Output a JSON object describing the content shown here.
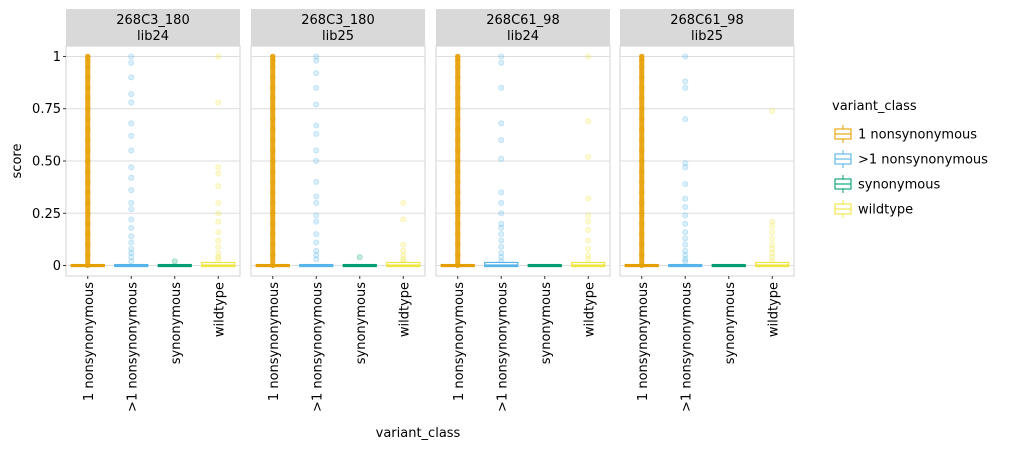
{
  "chart_data": {
    "type": "box",
    "xlabel": "variant_class",
    "ylabel": "score",
    "ylim": [
      -0.05,
      1.05
    ],
    "yticks": [
      0,
      0.25,
      0.5,
      0.75,
      1
    ],
    "ytick_labels": [
      "0",
      "0.25",
      "0.50",
      "0.75",
      "1"
    ],
    "categories": [
      "1 nonsynonymous",
      ">1 nonsynonymous",
      "synonymous",
      "wildtype"
    ],
    "grid": true,
    "legend": {
      "title": "variant_class",
      "position": "right",
      "entries": [
        "1 nonsynonymous",
        ">1 nonsynonymous",
        "synonymous",
        "wildtype"
      ]
    },
    "colors": {
      "1 nonsynonymous": "#E69F00",
      ">1 nonsynonymous": "#56B4E9",
      "synonymous": "#009E73",
      "wildtype": "#F0E442"
    },
    "facets": [
      {
        "strip": [
          "268C3_180",
          "lib24"
        ],
        "groups": [
          {
            "category": "1 nonsynonymous",
            "median": 0,
            "q1": 0,
            "q3": 0,
            "outlier_max": 1.0,
            "outliers": [
              1.0,
              0.98,
              0.95,
              0.9,
              0.85,
              0.8,
              0.75,
              0.7,
              0.65,
              0.6,
              0.55,
              0.5,
              0.45,
              0.4,
              0.35,
              0.3,
              0.25,
              0.2,
              0.15,
              0.1,
              0.05
            ]
          },
          {
            "category": ">1 nonsynonymous",
            "median": 0,
            "q1": 0,
            "q3": 0,
            "outlier_max": 1.0,
            "outliers": [
              1.0,
              0.97,
              0.9,
              0.82,
              0.78,
              0.68,
              0.62,
              0.55,
              0.47,
              0.42,
              0.36,
              0.3,
              0.27,
              0.22,
              0.18,
              0.14,
              0.11,
              0.08,
              0.06,
              0.04,
              0.02
            ]
          },
          {
            "category": "synonymous",
            "median": 0,
            "q1": 0,
            "q3": 0,
            "outlier_max": 0.02,
            "outliers": [
              0.02
            ]
          },
          {
            "category": "wildtype",
            "median": 0,
            "q1": 0,
            "q3": 0.01,
            "outlier_max": 1.0,
            "outliers": [
              1.0,
              0.78,
              0.47,
              0.44,
              0.38,
              0.3,
              0.25,
              0.21,
              0.16,
              0.12,
              0.09,
              0.06,
              0.04,
              0.03
            ]
          }
        ]
      },
      {
        "strip": [
          "268C3_180",
          "lib25"
        ],
        "groups": [
          {
            "category": "1 nonsynonymous",
            "median": 0,
            "q1": 0,
            "q3": 0,
            "outlier_max": 1.0,
            "outliers": [
              1.0,
              0.98,
              0.95,
              0.9,
              0.85,
              0.8,
              0.75,
              0.7,
              0.65,
              0.6,
              0.55,
              0.5,
              0.45,
              0.4,
              0.35,
              0.3,
              0.25,
              0.2,
              0.15,
              0.1,
              0.05
            ]
          },
          {
            "category": ">1 nonsynonymous",
            "median": 0,
            "q1": 0,
            "q3": 0,
            "outlier_max": 1.0,
            "outliers": [
              1.0,
              0.98,
              0.92,
              0.85,
              0.77,
              0.67,
              0.63,
              0.55,
              0.5,
              0.4,
              0.33,
              0.3,
              0.24,
              0.21,
              0.15,
              0.11,
              0.07,
              0.05,
              0.03
            ]
          },
          {
            "category": "synonymous",
            "median": 0,
            "q1": 0,
            "q3": 0,
            "outlier_max": 0.04,
            "outliers": [
              0.04
            ]
          },
          {
            "category": "wildtype",
            "median": 0,
            "q1": 0,
            "q3": 0.01,
            "outlier_max": 0.3,
            "outliers": [
              0.3,
              0.22,
              0.1,
              0.07,
              0.05,
              0.03,
              0.02
            ]
          }
        ]
      },
      {
        "strip": [
          "268C61_98",
          "lib24"
        ],
        "groups": [
          {
            "category": "1 nonsynonymous",
            "median": 0,
            "q1": 0,
            "q3": 0,
            "outlier_max": 1.0,
            "outliers": [
              1.0,
              0.98,
              0.95,
              0.9,
              0.85,
              0.8,
              0.75,
              0.7,
              0.65,
              0.6,
              0.55,
              0.5,
              0.45,
              0.4,
              0.35,
              0.3,
              0.25,
              0.2,
              0.15,
              0.1,
              0.05
            ]
          },
          {
            "category": ">1 nonsynonymous",
            "median": 0,
            "q1": 0,
            "q3": 0.01,
            "outlier_max": 1.0,
            "outliers": [
              1.0,
              0.97,
              0.85,
              0.68,
              0.6,
              0.51,
              0.35,
              0.3,
              0.25,
              0.2,
              0.18,
              0.15,
              0.12,
              0.09,
              0.06,
              0.04,
              0.02
            ]
          },
          {
            "category": "synonymous",
            "median": 0,
            "q1": 0,
            "q3": 0,
            "outlier_max": 0,
            "outliers": []
          },
          {
            "category": "wildtype",
            "median": 0,
            "q1": 0,
            "q3": 0.01,
            "outlier_max": 1.0,
            "outliers": [
              1.0,
              0.69,
              0.52,
              0.32,
              0.24,
              0.21,
              0.17,
              0.12,
              0.08,
              0.05,
              0.03
            ]
          }
        ]
      },
      {
        "strip": [
          "268C61_98",
          "lib25"
        ],
        "groups": [
          {
            "category": "1 nonsynonymous",
            "median": 0,
            "q1": 0,
            "q3": 0,
            "outlier_max": 1.0,
            "outliers": [
              1.0,
              0.98,
              0.95,
              0.9,
              0.85,
              0.8,
              0.75,
              0.7,
              0.65,
              0.6,
              0.55,
              0.5,
              0.45,
              0.4,
              0.35,
              0.3,
              0.25,
              0.2,
              0.15,
              0.1,
              0.05
            ]
          },
          {
            "category": ">1 nonsynonymous",
            "median": 0,
            "q1": 0,
            "q3": 0,
            "outlier_max": 1.0,
            "outliers": [
              1.0,
              0.88,
              0.85,
              0.7,
              0.49,
              0.47,
              0.39,
              0.32,
              0.28,
              0.24,
              0.2,
              0.16,
              0.13,
              0.1,
              0.07,
              0.05,
              0.03,
              0.02
            ]
          },
          {
            "category": "synonymous",
            "median": 0,
            "q1": 0,
            "q3": 0,
            "outlier_max": 0,
            "outliers": []
          },
          {
            "category": "wildtype",
            "median": 0,
            "q1": 0,
            "q3": 0.01,
            "outlier_max": 0.74,
            "outliers": [
              0.74,
              0.21,
              0.19,
              0.16,
              0.13,
              0.1,
              0.08,
              0.06,
              0.04,
              0.02
            ]
          }
        ]
      }
    ]
  }
}
